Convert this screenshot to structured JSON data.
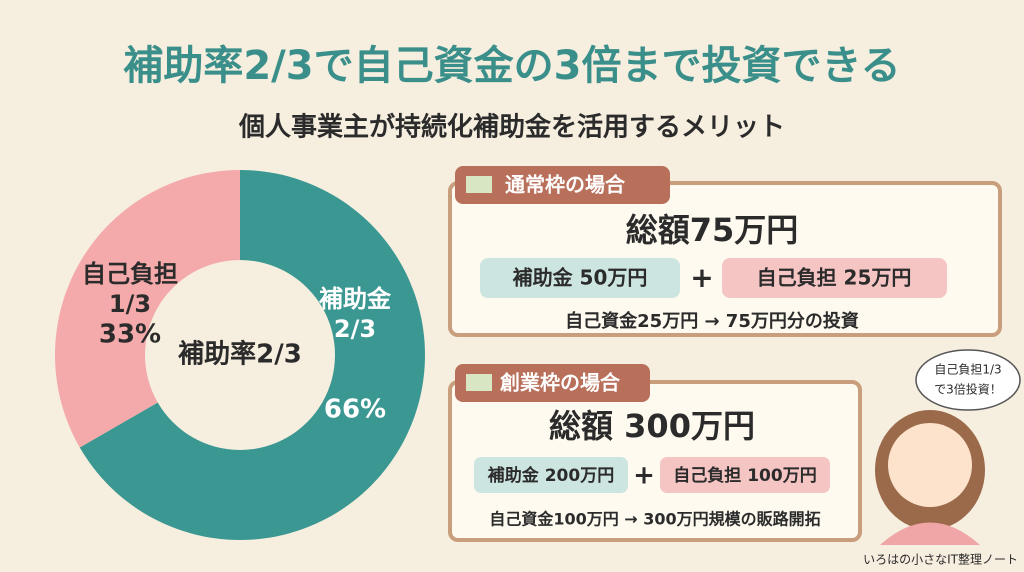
{
  "header": {
    "title": "補助率2/3で自己資金の3倍まで投資できる",
    "subtitle": "個人事業主が持続化補助金を活用するメリット"
  },
  "chart_data": {
    "type": "donut",
    "categories": [
      "補助金",
      "自己負担"
    ],
    "values": [
      66,
      33
    ],
    "value_labels": [
      "66%",
      "33%"
    ],
    "fraction_labels": [
      "2/3",
      "1/3"
    ],
    "colors": [
      "#3b9791",
      "#f4a9ab"
    ],
    "center_label": "補助率2/3"
  },
  "cards": [
    {
      "tab": "通常枠の場合",
      "total": "総額75万円",
      "subsidy": "補助金  50万円",
      "self_pay": "自己負担  25万円",
      "note": "自己資金25万円 → 75万円分の投資"
    },
    {
      "tab": "創業枠の場合",
      "total": "総額 300万円",
      "subsidy": "補助金 200万円",
      "self_pay": "自己負担 100万円",
      "note": "自己資金100万円 → 300万円規模の販路開拓"
    }
  ],
  "bubble": [
    "自己負担1/3",
    "で3倍投資！"
  ],
  "footer": "いろはの小さなIT整理ノート"
}
